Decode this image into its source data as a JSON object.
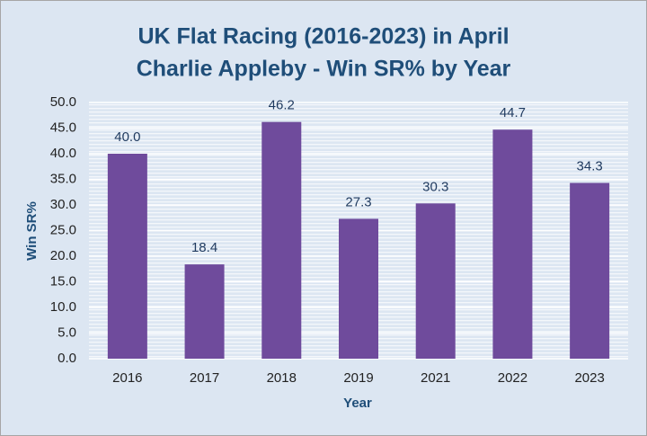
{
  "chart_data": {
    "type": "bar",
    "title": [
      "UK Flat Racing (2016-2023) in April",
      "Charlie Appleby - Win SR% by Year"
    ],
    "x_label": "Year",
    "y_label": "Win SR%",
    "categories": [
      "2016",
      "2017",
      "2018",
      "2019",
      "2021",
      "2022",
      "2023"
    ],
    "values": [
      40.0,
      18.4,
      46.2,
      27.3,
      30.3,
      44.7,
      34.3
    ],
    "value_labels": [
      "40.0",
      "18.4",
      "46.2",
      "27.3",
      "30.3",
      "44.7",
      "34.3"
    ],
    "color": "#6f4b9c",
    "ylim": [
      0,
      50
    ],
    "yticks": [
      {
        "value": 0,
        "label": "0.0"
      },
      {
        "value": 5,
        "label": "5.0"
      },
      {
        "value": 10,
        "label": "10.0"
      },
      {
        "value": 15,
        "label": "15.0"
      },
      {
        "value": 20,
        "label": "20.0"
      },
      {
        "value": 25,
        "label": "25.0"
      },
      {
        "value": 30,
        "label": "30.0"
      },
      {
        "value": 35,
        "label": "35.0"
      },
      {
        "value": 40,
        "label": "40.0"
      },
      {
        "value": 45,
        "label": "45.0"
      },
      {
        "value": 50,
        "label": "50.0"
      }
    ],
    "grid": true
  }
}
